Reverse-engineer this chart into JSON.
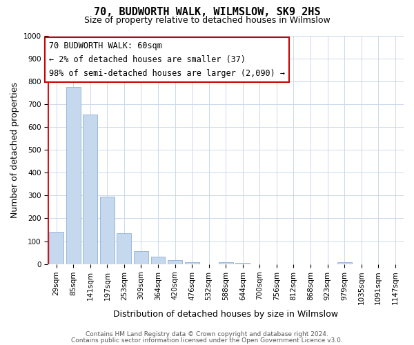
{
  "title": "70, BUDWORTH WALK, WILMSLOW, SK9 2HS",
  "subtitle": "Size of property relative to detached houses in Wilmslow",
  "xlabel": "Distribution of detached houses by size in Wilmslow",
  "ylabel": "Number of detached properties",
  "bar_labels": [
    "29sqm",
    "85sqm",
    "141sqm",
    "197sqm",
    "253sqm",
    "309sqm",
    "364sqm",
    "420sqm",
    "476sqm",
    "532sqm",
    "588sqm",
    "644sqm",
    "700sqm",
    "756sqm",
    "812sqm",
    "868sqm",
    "923sqm",
    "979sqm",
    "1035sqm",
    "1091sqm",
    "1147sqm"
  ],
  "bar_values": [
    140,
    775,
    655,
    295,
    135,
    55,
    32,
    18,
    8,
    0,
    7,
    5,
    0,
    0,
    0,
    0,
    0,
    7,
    0,
    0,
    0
  ],
  "bar_color_light": "#c5d8ee",
  "bar_edge_color": "#90b0d8",
  "bar_color_red": "#cc0000",
  "ylim": [
    0,
    1000
  ],
  "yticks": [
    0,
    100,
    200,
    300,
    400,
    500,
    600,
    700,
    800,
    900,
    1000
  ],
  "annotation_box_text_line1": "70 BUDWORTH WALK: 60sqm",
  "annotation_box_text_line2": "← 2% of detached houses are smaller (37)",
  "annotation_box_text_line3": "98% of semi-detached houses are larger (2,090) →",
  "footer_line1": "Contains HM Land Registry data © Crown copyright and database right 2024.",
  "footer_line2": "Contains public sector information licensed under the Open Government Licence v3.0.",
  "grid_color": "#ccd8ea",
  "background_color": "#ffffff",
  "title_fontsize": 11,
  "subtitle_fontsize": 9,
  "axis_label_fontsize": 9,
  "tick_fontsize": 7.5,
  "annotation_fontsize": 8.5,
  "footer_fontsize": 6.5
}
